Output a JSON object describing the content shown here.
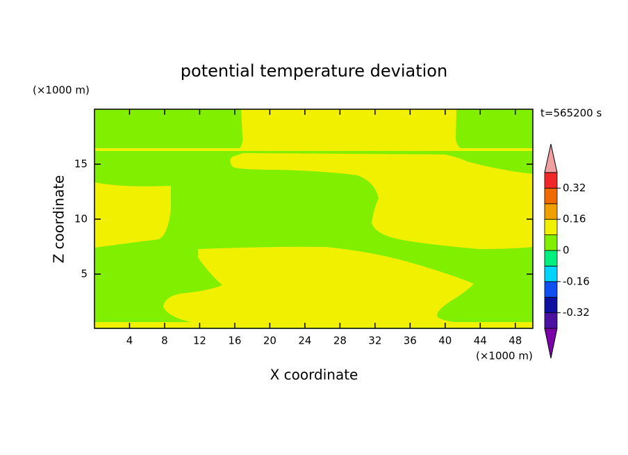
{
  "chart_data": {
    "type": "contour",
    "title": "potential temperature deviation",
    "x_label": "X coordinate",
    "y_label": "Z coordinate",
    "x_unit": "(×1000 m)",
    "y_unit": "(×1000 m)",
    "annotation": "t=565200 s",
    "xlim": [
      0,
      50
    ],
    "xticks": [
      4,
      8,
      12,
      16,
      20,
      24,
      28,
      32,
      36,
      40,
      44,
      48
    ],
    "ylim": [
      0,
      20
    ],
    "yticks": [
      5,
      10,
      15
    ],
    "colorbar": {
      "lim": [
        -0.4,
        0.4
      ],
      "ticks": [
        -0.32,
        -0.16,
        0,
        0.16,
        0.32
      ],
      "colors": [
        "#7a00a8",
        "#4a10a0",
        "#1010a0",
        "#1050f0",
        "#00d4ff",
        "#00f080",
        "#80f000",
        "#f0f000",
        "#f0a000",
        "#f06a00",
        "#f02828",
        "#f0a0a0"
      ]
    }
  }
}
